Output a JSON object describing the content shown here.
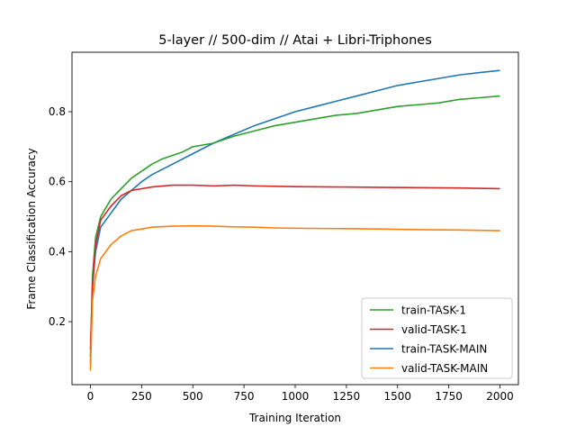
{
  "chart_data": {
    "type": "line",
    "title": "5-layer // 500-dim // Atai + Libri-Triphones",
    "xlabel": "Training Iteration",
    "ylabel": "Frame Classification Accuracy",
    "xlim": [
      -90,
      2090
    ],
    "ylim": [
      0.02,
      0.97
    ],
    "xticks": [
      0,
      250,
      500,
      750,
      1000,
      1250,
      1500,
      1750,
      2000
    ],
    "xtick_labels": [
      "0",
      "250",
      "500",
      "750",
      "1000",
      "1250",
      "1500",
      "1750",
      "2000"
    ],
    "yticks": [
      0.2,
      0.4,
      0.6,
      0.8
    ],
    "ytick_labels": [
      "0.2",
      "0.4",
      "0.6",
      "0.8"
    ],
    "grid": false,
    "legend_position": "lower-right",
    "series": [
      {
        "name": "train-TASK-1",
        "color": "#2ca02c",
        "x": [
          0,
          10,
          25,
          50,
          100,
          150,
          200,
          250,
          300,
          350,
          400,
          450,
          500,
          600,
          700,
          800,
          900,
          1000,
          1100,
          1200,
          1300,
          1400,
          1500,
          1600,
          1700,
          1800,
          1900,
          2000
        ],
        "y": [
          0.1,
          0.33,
          0.44,
          0.5,
          0.55,
          0.58,
          0.61,
          0.63,
          0.65,
          0.665,
          0.675,
          0.685,
          0.7,
          0.71,
          0.73,
          0.745,
          0.76,
          0.77,
          0.78,
          0.79,
          0.795,
          0.805,
          0.815,
          0.82,
          0.825,
          0.835,
          0.84,
          0.845
        ]
      },
      {
        "name": "valid-TASK-1",
        "color": "#d62728",
        "x": [
          0,
          10,
          25,
          50,
          100,
          150,
          200,
          250,
          300,
          400,
          500,
          600,
          700,
          800,
          900,
          1000,
          1200,
          1400,
          1600,
          1800,
          2000
        ],
        "y": [
          0.12,
          0.3,
          0.42,
          0.49,
          0.53,
          0.56,
          0.575,
          0.58,
          0.585,
          0.59,
          0.59,
          0.588,
          0.59,
          0.588,
          0.587,
          0.586,
          0.585,
          0.584,
          0.583,
          0.582,
          0.58
        ]
      },
      {
        "name": "train-TASK-MAIN",
        "color": "#1f77b4",
        "x": [
          0,
          10,
          25,
          50,
          100,
          150,
          200,
          250,
          300,
          400,
          500,
          600,
          700,
          800,
          900,
          1000,
          1100,
          1200,
          1300,
          1400,
          1500,
          1600,
          1700,
          1800,
          1900,
          2000
        ],
        "y": [
          0.08,
          0.3,
          0.4,
          0.47,
          0.51,
          0.55,
          0.575,
          0.6,
          0.62,
          0.65,
          0.68,
          0.71,
          0.735,
          0.76,
          0.78,
          0.8,
          0.815,
          0.83,
          0.845,
          0.86,
          0.875,
          0.885,
          0.895,
          0.905,
          0.912,
          0.918
        ]
      },
      {
        "name": "valid-TASK-MAIN",
        "color": "#ff7f0e",
        "x": [
          0,
          10,
          25,
          50,
          100,
          150,
          200,
          250,
          300,
          400,
          500,
          600,
          700,
          800,
          900,
          1000,
          1200,
          1400,
          1600,
          1800,
          2000
        ],
        "y": [
          0.06,
          0.26,
          0.33,
          0.38,
          0.42,
          0.445,
          0.46,
          0.465,
          0.47,
          0.473,
          0.474,
          0.473,
          0.471,
          0.47,
          0.468,
          0.467,
          0.466,
          0.465,
          0.463,
          0.462,
          0.46
        ]
      }
    ]
  }
}
